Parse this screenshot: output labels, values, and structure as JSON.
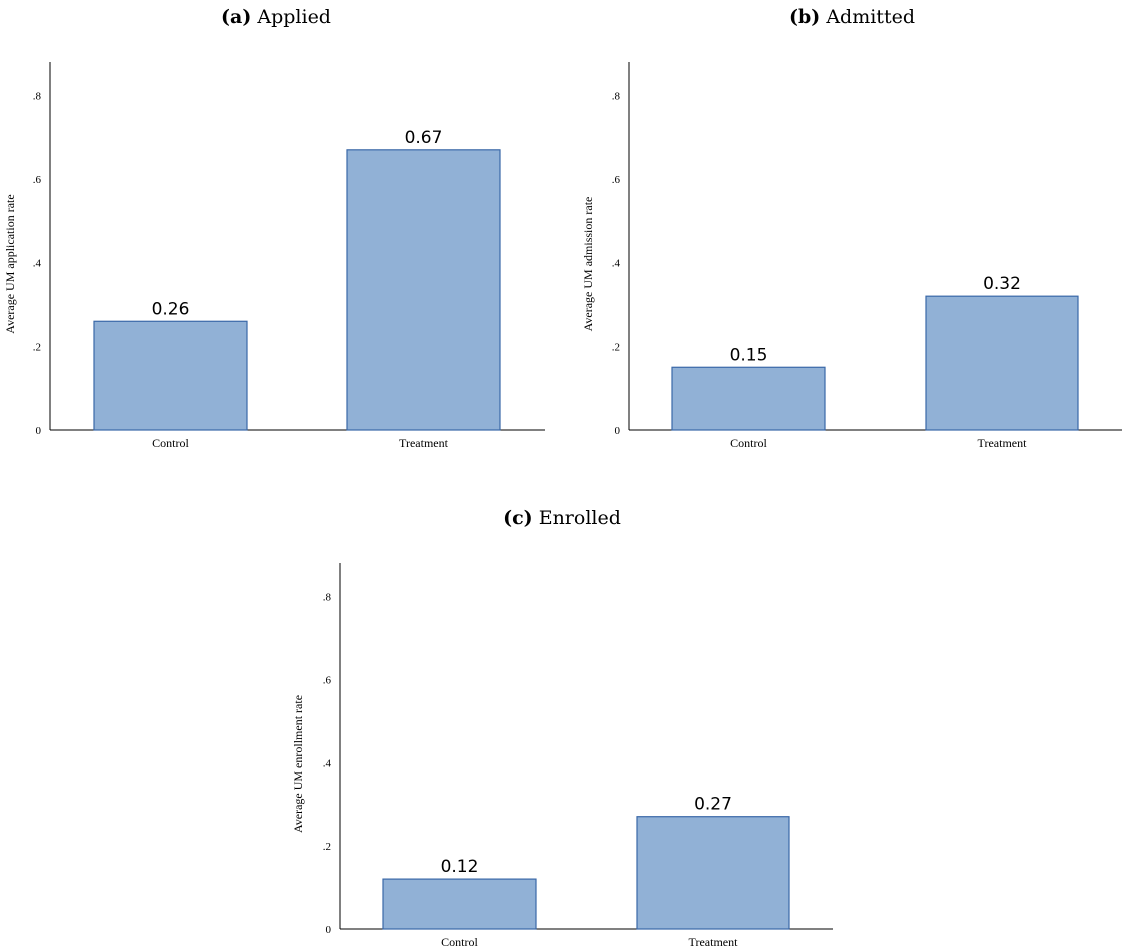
{
  "colors": {
    "bar_fill": "#91b1d6",
    "bar_stroke": "#3a68a8"
  },
  "chart_data": [
    {
      "type": "bar",
      "panel_tag": "(a)",
      "title": "Applied",
      "xlabel": "",
      "ylabel": "Average UM application rate",
      "categories": [
        "Control",
        "Treatment"
      ],
      "values": [
        0.26,
        0.67
      ],
      "data_labels": [
        "0.26",
        "0.67"
      ],
      "ylim": [
        0,
        0.88
      ],
      "yticks": [
        0,
        0.2,
        0.4,
        0.6,
        0.8
      ],
      "ytick_labels": [
        "0",
        ".2",
        ".4",
        ".6",
        ".8"
      ],
      "grid": false,
      "legend": "none"
    },
    {
      "type": "bar",
      "panel_tag": "(b)",
      "title": "Admitted",
      "xlabel": "",
      "ylabel": "Average UM admission rate",
      "categories": [
        "Control",
        "Treatment"
      ],
      "values": [
        0.15,
        0.32
      ],
      "data_labels": [
        "0.15",
        "0.32"
      ],
      "ylim": [
        0,
        0.88
      ],
      "yticks": [
        0,
        0.2,
        0.4,
        0.6,
        0.8
      ],
      "ytick_labels": [
        "0",
        ".2",
        ".4",
        ".6",
        ".8"
      ],
      "grid": false,
      "legend": "none"
    },
    {
      "type": "bar",
      "panel_tag": "(c)",
      "title": "Enrolled",
      "xlabel": "",
      "ylabel": "Average UM enrollment rate",
      "categories": [
        "Control",
        "Treatment"
      ],
      "values": [
        0.12,
        0.27
      ],
      "data_labels": [
        "0.12",
        "0.27"
      ],
      "ylim": [
        0,
        0.88
      ],
      "yticks": [
        0,
        0.2,
        0.4,
        0.6,
        0.8
      ],
      "ytick_labels": [
        "0",
        ".2",
        ".4",
        ".6",
        ".8"
      ],
      "grid": false,
      "legend": "none"
    }
  ]
}
